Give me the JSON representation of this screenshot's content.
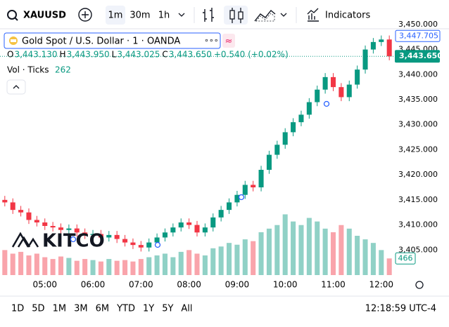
{
  "toolbar": {
    "symbol": "XAUUSD",
    "intervals": [
      "1m",
      "30m",
      "1h"
    ],
    "indicators": "Indicators"
  },
  "legend": {
    "title": "Gold Spot / U.S. Dollar · 1 · OANDA",
    "ohlc": [
      {
        "letter": "O",
        "value": "3,443.130"
      },
      {
        "letter": "H",
        "value": "3,443.950"
      },
      {
        "letter": "L",
        "value": "3,443.025"
      },
      {
        "letter": "C",
        "value": "3,443.650"
      }
    ],
    "change": "+0.540 (+0.02%)",
    "volume_label": "Vol · Ticks",
    "volume_value": "262"
  },
  "watermark": "KITCO",
  "chart_data": {
    "type": "candlestick",
    "x": [
      250,
      260,
      270,
      280,
      290,
      300,
      310,
      320,
      330,
      340,
      350,
      360,
      370,
      380,
      390,
      400,
      410,
      420,
      430,
      440,
      450,
      460,
      470,
      480,
      490,
      500,
      510,
      520,
      530,
      540,
      550,
      560,
      570,
      580,
      590,
      600,
      610,
      620,
      630,
      640,
      650,
      660,
      670,
      680,
      690,
      700,
      710,
      720,
      730
    ],
    "open": [
      3415,
      3414.5,
      3413,
      3412.5,
      3411,
      3410.5,
      3409.8,
      3409.5,
      3409,
      3409.3,
      3408.5,
      3408,
      3408.2,
      3407.5,
      3408,
      3407.2,
      3406.5,
      3406,
      3405.5,
      3406.5,
      3407.5,
      3408.5,
      3409.5,
      3410.5,
      3410,
      3408.5,
      3409.5,
      3411.5,
      3413,
      3414.5,
      3416,
      3418,
      3417.5,
      3421,
      3424,
      3426,
      3428.5,
      3430.5,
      3432,
      3434.5,
      3437,
      3439.5,
      3437.5,
      3435.5,
      3438,
      3441,
      3445,
      3446.5,
      3447
    ],
    "high": [
      3415.8,
      3415.3,
      3413.8,
      3413.3,
      3411.8,
      3411.3,
      3410.6,
      3410.3,
      3410.1,
      3410.1,
      3409.3,
      3409,
      3409,
      3408.8,
      3408.8,
      3408,
      3407.3,
      3406.8,
      3407.3,
      3408.3,
      3409.3,
      3410.3,
      3411.3,
      3411.3,
      3410.8,
      3410.3,
      3412.3,
      3413.8,
      3415.3,
      3416.8,
      3418.8,
      3418.8,
      3421.8,
      3424.8,
      3426.8,
      3429.3,
      3431.3,
      3432.8,
      3435.3,
      3437.8,
      3440.3,
      3440.3,
      3438.3,
      3438.8,
      3441.8,
      3445.8,
      3447.3,
      3447.8,
      3447.8
    ],
    "low": [
      3413.7,
      3412.2,
      3411.7,
      3410.2,
      3409.7,
      3409,
      3408.7,
      3408.2,
      3408.2,
      3407.7,
      3407.2,
      3407.2,
      3406.7,
      3406.7,
      3406.4,
      3405.7,
      3405.2,
      3404.7,
      3404.7,
      3405.7,
      3406.7,
      3407.7,
      3408.7,
      3409.2,
      3407.7,
      3407.7,
      3408.7,
      3410.7,
      3412.2,
      3413.7,
      3415.2,
      3416.7,
      3416.7,
      3420.2,
      3423.2,
      3425.2,
      3427.7,
      3429.7,
      3431.2,
      3433.7,
      3436.2,
      3436.7,
      3434.7,
      3434.7,
      3437.2,
      3440.2,
      3444.2,
      3445.7,
      3442.85
    ],
    "close": [
      3414.5,
      3413,
      3412.5,
      3411,
      3410.5,
      3409.8,
      3409.5,
      3409,
      3409.3,
      3408.5,
      3408,
      3408.2,
      3407.5,
      3408,
      3407.2,
      3406.5,
      3406,
      3405.5,
      3406.5,
      3407.5,
      3408.5,
      3409.5,
      3410.5,
      3410,
      3408.5,
      3409.5,
      3411.5,
      3413,
      3414.5,
      3416,
      3418,
      3417.5,
      3421,
      3424,
      3426,
      3428.5,
      3430.5,
      3432,
      3434.5,
      3437,
      3439.5,
      3437.5,
      3435.5,
      3438,
      3441,
      3445,
      3446.5,
      3447,
      3443.65
    ],
    "volume": [
      700,
      600,
      650,
      550,
      600,
      500,
      450,
      520,
      480,
      400,
      450,
      420,
      380,
      450,
      400,
      420,
      380,
      450,
      500,
      550,
      600,
      500,
      650,
      700,
      600,
      550,
      750,
      800,
      900,
      850,
      1000,
      950,
      1200,
      1300,
      1400,
      1700,
      1500,
      1400,
      1600,
      1500,
      1300,
      1200,
      1400,
      1300,
      1100,
      1000,
      900,
      700,
      466
    ],
    "up_color": "#089981",
    "down_color": "#f23645",
    "xlim": [
      244,
      736
    ],
    "ylim": [
      3400,
      3449
    ],
    "y2lim": [
      0,
      2200
    ],
    "xticks": [
      {
        "value": 300,
        "label": "05:00"
      },
      {
        "value": 360,
        "label": "06:00"
      },
      {
        "value": 420,
        "label": "07:00"
      },
      {
        "value": 480,
        "label": "08:00"
      },
      {
        "value": 540,
        "label": "09:00"
      },
      {
        "value": 600,
        "label": "10:00"
      },
      {
        "value": 660,
        "label": "11:00"
      },
      {
        "value": 720,
        "label": "12:00"
      }
    ],
    "yticks": [
      {
        "value": 3405,
        "label": "3,405.000"
      },
      {
        "value": 3410,
        "label": "3,410.000"
      },
      {
        "value": 3415,
        "label": "3,415.000"
      },
      {
        "value": 3420,
        "label": "3,420.000"
      },
      {
        "value": 3425,
        "label": "3,425.000"
      },
      {
        "value": 3430,
        "label": "3,430.000"
      },
      {
        "value": 3435,
        "label": "3,435.000"
      },
      {
        "value": 3440,
        "label": "3,440.000"
      },
      {
        "value": 3445,
        "label": "3,445.000"
      },
      {
        "value": 3450,
        "label": "3,450.000"
      }
    ],
    "high_marker": {
      "value": 3447.705,
      "label": "3,447.705"
    },
    "last_price": {
      "value": 3443.65,
      "label": "3,443.650"
    },
    "grid": false
  },
  "bottom_bar": {
    "ranges": [
      "1D",
      "5D",
      "1M",
      "3M",
      "6M",
      "YTD",
      "1Y",
      "5Y",
      "All"
    ],
    "clock": "12:18:59 UTC-4"
  }
}
